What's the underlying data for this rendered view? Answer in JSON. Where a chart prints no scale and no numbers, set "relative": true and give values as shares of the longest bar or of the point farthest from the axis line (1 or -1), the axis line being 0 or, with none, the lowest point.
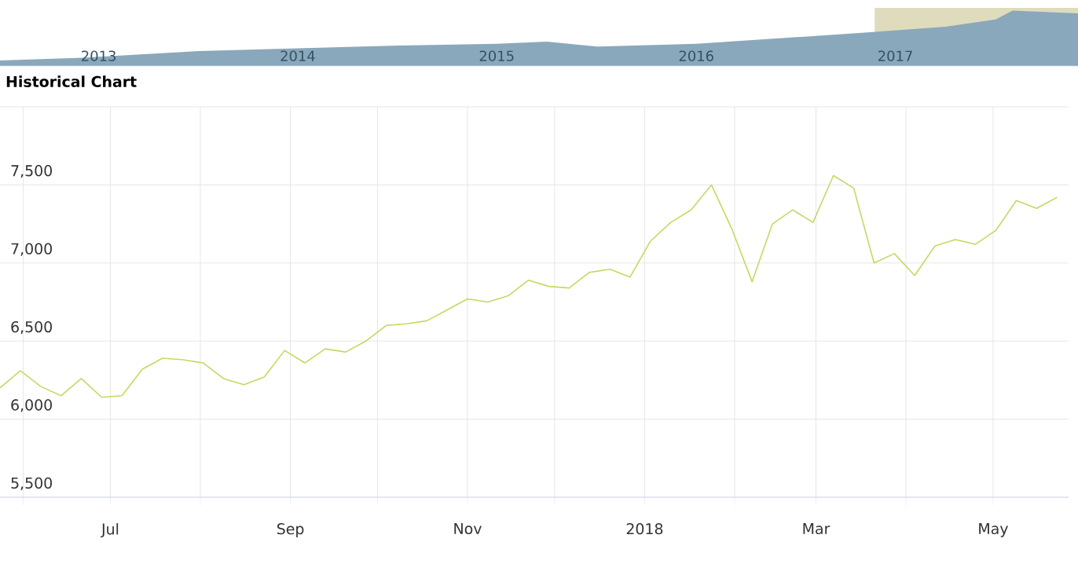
{
  "chart_data": [
    {
      "type": "area",
      "relative": true,
      "color": "#8aa8bb",
      "x": [
        "2013-01-01",
        "2013-06-01",
        "2014-01-01",
        "2014-07-01",
        "2015-01-01",
        "2015-07-01",
        "2015-10-01",
        "2016-01-01",
        "2016-07-01",
        "2017-01-01",
        "2017-05-01",
        "2017-10-01",
        "2018-01-01",
        "2018-02-01",
        "2018-06-01"
      ],
      "values": [
        0.1,
        0.15,
        0.27,
        0.32,
        0.37,
        0.4,
        0.44,
        0.35,
        0.4,
        0.52,
        0.6,
        0.71,
        0.84,
        1.0,
        0.95
      ],
      "xlim": [
        "2013-01-01",
        "2018-06-01"
      ],
      "xticks": [
        {
          "value": "2013-07-01",
          "label": "2013"
        },
        {
          "value": "2014-07-01",
          "label": "2014"
        },
        {
          "value": "2015-07-01",
          "label": "2015"
        },
        {
          "value": "2016-07-01",
          "label": "2016"
        },
        {
          "value": "2017-07-01",
          "label": "2017"
        }
      ],
      "bands": [
        {
          "axis": "x",
          "from": "2017-05-24",
          "to": "2018-06-01",
          "color": "#dedcbc"
        }
      ]
    },
    {
      "type": "line",
      "title": "Historical Chart",
      "color": "#c2da62",
      "grid": true,
      "x": [
        "2017-05-24",
        "2017-05-31",
        "2017-06-07",
        "2017-06-14",
        "2017-06-21",
        "2017-06-28",
        "2017-07-05",
        "2017-07-12",
        "2017-07-19",
        "2017-07-26",
        "2017-08-02",
        "2017-08-09",
        "2017-08-16",
        "2017-08-23",
        "2017-08-30",
        "2017-09-06",
        "2017-09-13",
        "2017-09-20",
        "2017-09-27",
        "2017-10-04",
        "2017-10-11",
        "2017-10-18",
        "2017-10-25",
        "2017-11-01",
        "2017-11-08",
        "2017-11-15",
        "2017-11-22",
        "2017-11-29",
        "2017-12-06",
        "2017-12-13",
        "2017-12-20",
        "2017-12-27",
        "2018-01-03",
        "2018-01-10",
        "2018-01-17",
        "2018-01-24",
        "2018-01-31",
        "2018-02-07",
        "2018-02-14",
        "2018-02-21",
        "2018-02-28",
        "2018-03-07",
        "2018-03-14",
        "2018-03-21",
        "2018-03-28",
        "2018-04-04",
        "2018-04-11",
        "2018-04-18",
        "2018-04-25",
        "2018-05-02",
        "2018-05-09",
        "2018-05-16",
        "2018-05-23"
      ],
      "values": [
        6200,
        6310,
        6210,
        6150,
        6260,
        6140,
        6150,
        6320,
        6390,
        6380,
        6360,
        6260,
        6220,
        6270,
        6440,
        6360,
        6450,
        6430,
        6500,
        6600,
        6610,
        6630,
        6700,
        6770,
        6750,
        6790,
        6890,
        6850,
        6840,
        6940,
        6960,
        6910,
        7140,
        7260,
        7340,
        7500,
        7220,
        6880,
        7250,
        7340,
        7260,
        7560,
        7480,
        7000,
        7060,
        6920,
        7110,
        7150,
        7120,
        7210,
        7400,
        7350,
        7420
      ],
      "xlim": [
        "2017-05-24",
        "2018-05-27"
      ],
      "xticks": [
        {
          "value": "2017-06-01",
          "label": null
        },
        {
          "value": "2017-07-01",
          "label": "Jul"
        },
        {
          "value": "2017-08-01",
          "label": null
        },
        {
          "value": "2017-09-01",
          "label": "Sep"
        },
        {
          "value": "2017-10-01",
          "label": null
        },
        {
          "value": "2017-11-01",
          "label": "Nov"
        },
        {
          "value": "2017-12-01",
          "label": null
        },
        {
          "value": "2018-01-01",
          "label": "2018"
        },
        {
          "value": "2018-02-01",
          "label": null
        },
        {
          "value": "2018-03-01",
          "label": "Mar"
        },
        {
          "value": "2018-04-01",
          "label": null
        },
        {
          "value": "2018-05-01",
          "label": "May"
        }
      ],
      "ylim": [
        5500,
        8000
      ],
      "yticks": [
        {
          "value": 5500,
          "label": "5,500"
        },
        {
          "value": 6000,
          "label": "6,000"
        },
        {
          "value": 6500,
          "label": "6,500"
        },
        {
          "value": 7000,
          "label": "7,000"
        },
        {
          "value": 7500,
          "label": "7,500"
        },
        {
          "value": 8000,
          "label": null
        }
      ]
    }
  ]
}
